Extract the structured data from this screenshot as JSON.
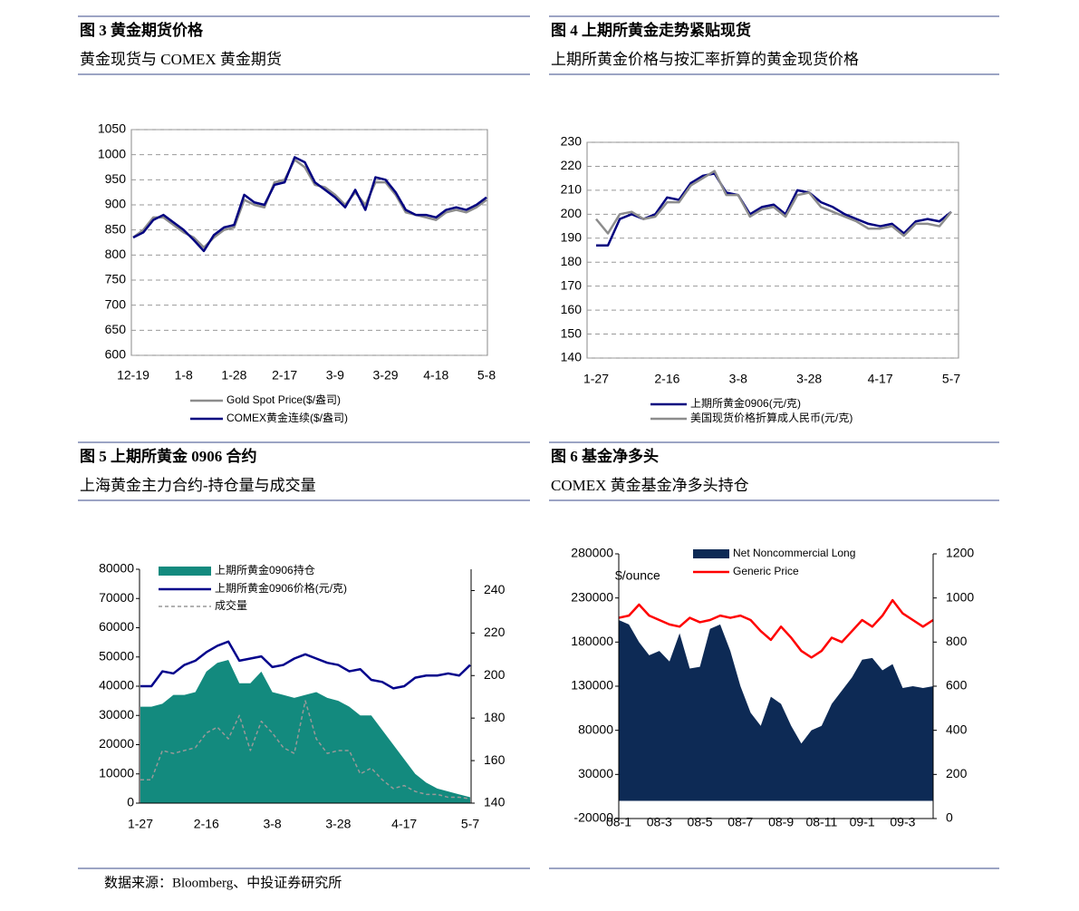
{
  "chart_data": [
    {
      "type": "line",
      "title": "图 3  黄金期货价格",
      "subtitle": "黄金现货与 COMEX 黄金期货",
      "categories": [
        "12-19",
        null,
        null,
        null,
        null,
        "1-8",
        null,
        null,
        null,
        null,
        "1-28",
        null,
        null,
        null,
        null,
        "2-17",
        null,
        null,
        null,
        null,
        "3-9",
        null,
        null,
        null,
        null,
        "3-29",
        null,
        null,
        null,
        null,
        "4-18",
        null,
        null,
        null,
        null,
        "5-8"
      ],
      "series": [
        {
          "name": "Gold Spot Price($/盎司)",
          "color": "#8c8c8c",
          "values": [
            835,
            850,
            875,
            875,
            860,
            845,
            835,
            815,
            835,
            850,
            855,
            910,
            900,
            895,
            945,
            950,
            990,
            975,
            940,
            935,
            920,
            900,
            925,
            900,
            945,
            945,
            920,
            885,
            880,
            875,
            870,
            885,
            890,
            885,
            895,
            910
          ]
        },
        {
          "name": "COMEX黄金连续($/盎司)",
          "color": "#000080",
          "values": [
            835,
            845,
            870,
            880,
            865,
            850,
            830,
            808,
            840,
            855,
            860,
            920,
            905,
            900,
            940,
            945,
            995,
            985,
            945,
            930,
            915,
            895,
            930,
            890,
            955,
            950,
            925,
            890,
            880,
            880,
            875,
            890,
            895,
            890,
            900,
            915
          ]
        }
      ],
      "ylim": [
        600,
        1050
      ],
      "yticks": [
        600,
        650,
        700,
        750,
        800,
        850,
        900,
        950,
        1000,
        1050
      ],
      "grid": true
    },
    {
      "type": "line",
      "title": "图 4  上期所黄金走势紧贴现货",
      "subtitle": "上期所黄金价格与按汇率折算的黄金现货价格",
      "categories": [
        "1-27",
        null,
        null,
        null,
        null,
        null,
        "2-16",
        null,
        null,
        null,
        null,
        null,
        "3-8",
        null,
        null,
        null,
        null,
        null,
        "3-28",
        null,
        null,
        null,
        null,
        null,
        "4-17",
        null,
        null,
        null,
        null,
        null,
        "5-7"
      ],
      "series": [
        {
          "name": "上期所黄金0906(元/克)",
          "color": "#00007f",
          "values": [
            187,
            187,
            198,
            200,
            198,
            200,
            207,
            206,
            213,
            216,
            217,
            209,
            208,
            200,
            203,
            204,
            200,
            210,
            209,
            205,
            203,
            200,
            198,
            196,
            195,
            196,
            192,
            197,
            198,
            197,
            201
          ]
        },
        {
          "name": "美国现货价格折算成人民币(元/克)",
          "color": "#8c8c8c",
          "values": [
            198,
            192,
            200,
            201,
            198,
            199,
            205,
            205,
            212,
            215,
            218,
            208,
            208,
            199,
            202,
            203,
            199,
            208,
            209,
            203,
            201,
            199,
            197,
            194,
            194,
            195,
            191,
            196,
            196,
            195,
            201
          ]
        }
      ],
      "ylim": [
        140,
        230
      ],
      "yticks": [
        140,
        150,
        160,
        170,
        180,
        190,
        200,
        210,
        220,
        230
      ],
      "grid": true
    },
    {
      "type": "area",
      "title": "图 5  上期所黄金 0906 合约",
      "subtitle": "上海黄金主力合约-持仓量与成交量",
      "categories": [
        "1-27",
        null,
        null,
        null,
        null,
        null,
        "2-16",
        null,
        null,
        null,
        null,
        null,
        "3-8",
        null,
        null,
        null,
        null,
        null,
        "3-28",
        null,
        null,
        null,
        null,
        null,
        "4-17",
        null,
        null,
        null,
        null,
        null,
        "5-7"
      ],
      "series": [
        {
          "name": "上期所黄金0906持仓",
          "color": "#138a7e",
          "type": "area",
          "values": [
            33000,
            33000,
            34000,
            37000,
            37000,
            38000,
            45000,
            48000,
            49000,
            41000,
            41000,
            45000,
            38000,
            37000,
            36000,
            37000,
            38000,
            36000,
            35000,
            33000,
            30000,
            30000,
            25000,
            20000,
            15000,
            10000,
            7000,
            5000,
            4000,
            3000,
            2000
          ]
        },
        {
          "name": "上期所黄金0906价格(元/克)",
          "color": "#00008b",
          "type": "line",
          "axis": "y2",
          "values": [
            195,
            195,
            202,
            201,
            205,
            207,
            211,
            214,
            216,
            207,
            208,
            209,
            204,
            205,
            208,
            210,
            208,
            206,
            205,
            202,
            203,
            198,
            197,
            194,
            195,
            199,
            200,
            200,
            201,
            200,
            205
          ]
        },
        {
          "name": "成交量",
          "color": "#999999",
          "type": "line",
          "dashed": true,
          "values": [
            8000,
            8000,
            18000,
            17000,
            18000,
            19000,
            24000,
            26000,
            22000,
            30000,
            18000,
            28000,
            24000,
            19000,
            17000,
            35000,
            22000,
            17000,
            18000,
            18000,
            10000,
            12000,
            8000,
            5000,
            6000,
            4000,
            3000,
            3000,
            2000,
            2000,
            1500
          ]
        }
      ],
      "ylim": [
        0,
        80000
      ],
      "yticks": [
        0,
        10000,
        20000,
        30000,
        40000,
        50000,
        60000,
        70000,
        80000
      ],
      "y2lim": [
        140,
        250
      ],
      "y2ticks": [
        140,
        160,
        180,
        200,
        220,
        240
      ],
      "grid": false
    },
    {
      "type": "area",
      "title": "图 6  基金净多头",
      "subtitle": "COMEX 黄金基金净多头持仓",
      "ylabel": "$/ounce",
      "categories": [
        "08-1",
        null,
        null,
        null,
        "08-3",
        null,
        null,
        null,
        "08-5",
        null,
        null,
        null,
        "08-7",
        null,
        null,
        null,
        "08-9",
        null,
        null,
        null,
        "08-11",
        null,
        null,
        null,
        "09-1",
        null,
        null,
        null,
        "09-3",
        null,
        null,
        null
      ],
      "series": [
        {
          "name": "Net Noncommercial Long",
          "color": "#0d2a55",
          "type": "area",
          "values": [
            205000,
            200000,
            180000,
            165000,
            170000,
            158000,
            190000,
            150000,
            152000,
            195000,
            200000,
            170000,
            130000,
            100000,
            85000,
            118000,
            110000,
            85000,
            65000,
            80000,
            85000,
            110000,
            125000,
            140000,
            160000,
            162000,
            148000,
            155000,
            128000,
            130000,
            128000,
            130000
          ]
        },
        {
          "name": "Generic Price",
          "color": "#ff0000",
          "type": "line",
          "axis": "y2",
          "values": [
            910,
            920,
            970,
            920,
            900,
            880,
            870,
            910,
            890,
            900,
            920,
            910,
            920,
            900,
            850,
            810,
            870,
            820,
            760,
            730,
            760,
            820,
            800,
            850,
            900,
            870,
            920,
            990,
            930,
            900,
            870,
            900
          ]
        }
      ],
      "ylim": [
        -20000,
        280000
      ],
      "yticks": [
        -20000,
        30000,
        80000,
        130000,
        180000,
        230000,
        280000
      ],
      "y2lim": [
        0,
        1200
      ],
      "y2ticks": [
        0,
        200,
        400,
        600,
        800,
        1000,
        1200
      ],
      "grid": false
    }
  ],
  "source": "数据来源：Bloomberg、中投证券研究所"
}
